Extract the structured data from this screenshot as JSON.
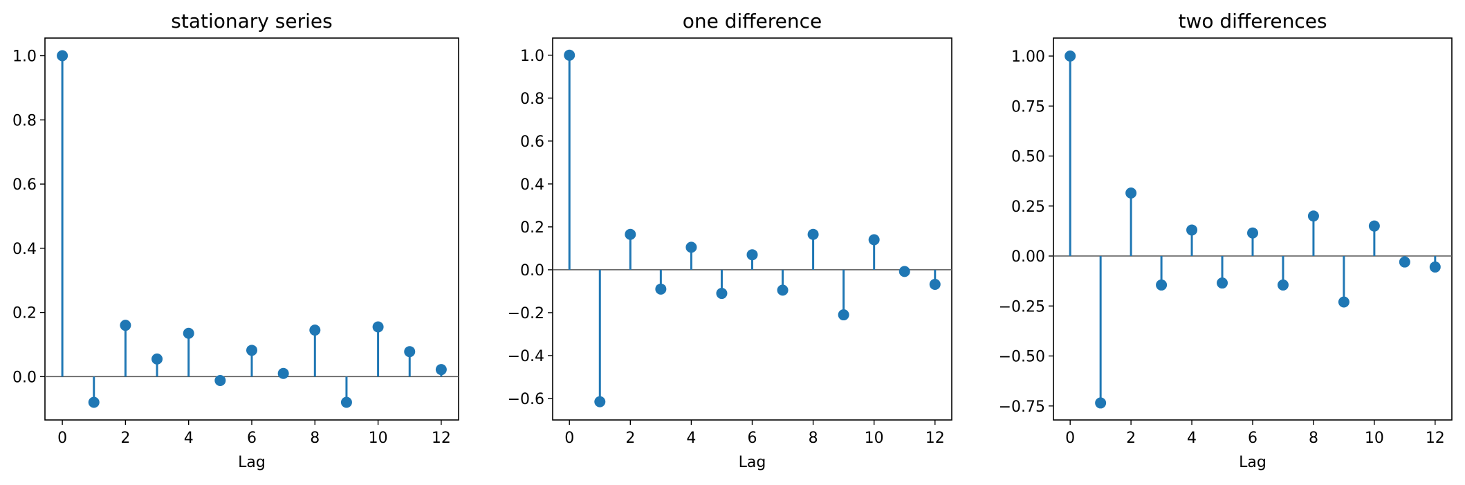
{
  "figure": {
    "stem_color": "#1f77b4",
    "baseline_color": "#555555"
  },
  "chart_data": [
    {
      "type": "stem",
      "title": "stationary series",
      "xlabel": "Lag",
      "ylabel": "",
      "x": [
        0,
        1,
        2,
        3,
        4,
        5,
        6,
        7,
        8,
        9,
        10,
        11,
        12
      ],
      "values": [
        1.0,
        -0.08,
        0.16,
        0.055,
        0.135,
        -0.012,
        0.082,
        0.01,
        0.145,
        -0.08,
        0.155,
        0.078,
        0.022
      ],
      "xlim": [
        -0.55,
        12.55
      ],
      "ylim": [
        -0.135,
        1.055
      ],
      "xticks": [
        0,
        2,
        4,
        6,
        8,
        10,
        12
      ],
      "xtick_labels": [
        "0",
        "2",
        "4",
        "6",
        "8",
        "10",
        "12"
      ],
      "yticks": [
        0.0,
        0.2,
        0.4,
        0.6,
        0.8,
        1.0
      ],
      "ytick_labels": [
        "0.0",
        "0.2",
        "0.4",
        "0.6",
        "0.8",
        "1.0"
      ]
    },
    {
      "type": "stem",
      "title": "one difference",
      "xlabel": "Lag",
      "ylabel": "",
      "x": [
        0,
        1,
        2,
        3,
        4,
        5,
        6,
        7,
        8,
        9,
        10,
        11,
        12
      ],
      "values": [
        1.0,
        -0.615,
        0.165,
        -0.09,
        0.105,
        -0.11,
        0.07,
        -0.095,
        0.165,
        -0.21,
        0.14,
        -0.008,
        -0.068
      ],
      "xlim": [
        -0.55,
        12.55
      ],
      "ylim": [
        -0.7,
        1.08
      ],
      "xticks": [
        0,
        2,
        4,
        6,
        8,
        10,
        12
      ],
      "xtick_labels": [
        "0",
        "2",
        "4",
        "6",
        "8",
        "10",
        "12"
      ],
      "yticks": [
        -0.6,
        -0.4,
        -0.2,
        0.0,
        0.2,
        0.4,
        0.6,
        0.8,
        1.0
      ],
      "ytick_labels": [
        "−0.6",
        "−0.4",
        "−0.2",
        "0.0",
        "0.2",
        "0.4",
        "0.6",
        "0.8",
        "1.0"
      ]
    },
    {
      "type": "stem",
      "title": "two differences",
      "xlabel": "Lag",
      "ylabel": "",
      "x": [
        0,
        1,
        2,
        3,
        4,
        5,
        6,
        7,
        8,
        9,
        10,
        11,
        12
      ],
      "values": [
        1.0,
        -0.735,
        0.315,
        -0.145,
        0.13,
        -0.135,
        0.115,
        -0.145,
        0.2,
        -0.23,
        0.15,
        -0.03,
        -0.055
      ],
      "xlim": [
        -0.55,
        12.55
      ],
      "ylim": [
        -0.82,
        1.09
      ],
      "xticks": [
        0,
        2,
        4,
        6,
        8,
        10,
        12
      ],
      "xtick_labels": [
        "0",
        "2",
        "4",
        "6",
        "8",
        "10",
        "12"
      ],
      "yticks": [
        -0.75,
        -0.5,
        -0.25,
        0.0,
        0.25,
        0.5,
        0.75,
        1.0
      ],
      "ytick_labels": [
        "−0.75",
        "−0.50",
        "−0.25",
        "0.00",
        "0.25",
        "0.50",
        "0.75",
        "1.00"
      ]
    }
  ]
}
